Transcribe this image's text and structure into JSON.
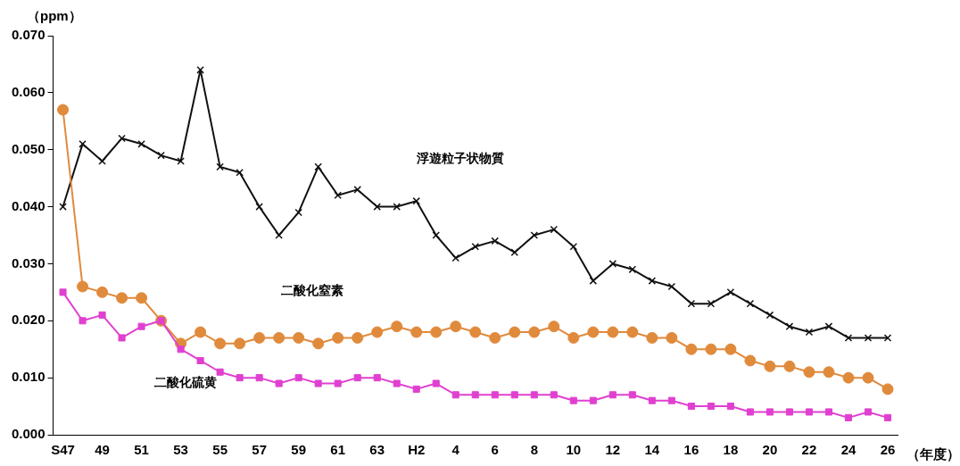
{
  "chart_data": {
    "type": "line",
    "ylabel": "（ppm）",
    "xlabel": "（年度）",
    "categories": [
      "S47",
      null,
      "49",
      null,
      "51",
      null,
      "53",
      null,
      "55",
      null,
      "57",
      null,
      "59",
      null,
      "61",
      null,
      "63",
      null,
      "H2",
      null,
      "4",
      null,
      "6",
      null,
      "8",
      null,
      "10",
      null,
      "12",
      null,
      "14",
      null,
      "16",
      null,
      "18",
      null,
      "20",
      null,
      "22",
      null,
      "24",
      null,
      "26"
    ],
    "series": [
      {
        "name": "浮遊粒子状物質",
        "color": "#111111",
        "marker": "cross",
        "values": [
          0.04,
          0.051,
          0.048,
          0.052,
          0.051,
          0.049,
          0.048,
          0.064,
          0.047,
          0.046,
          0.04,
          0.035,
          0.039,
          0.047,
          0.042,
          0.043,
          0.04,
          0.04,
          0.041,
          0.035,
          0.031,
          0.033,
          0.034,
          0.032,
          0.035,
          0.036,
          0.033,
          0.027,
          0.03,
          0.029,
          0.027,
          0.026,
          0.023,
          0.023,
          0.025,
          0.023,
          0.021,
          0.019,
          0.018,
          0.019,
          0.017,
          0.017,
          0.017
        ]
      },
      {
        "name": "二酸化窒素",
        "color": "#e08a3c",
        "marker": "circle",
        "values": [
          0.057,
          0.026,
          0.025,
          0.024,
          0.024,
          0.02,
          0.016,
          0.018,
          0.016,
          0.016,
          0.017,
          0.017,
          0.017,
          0.016,
          0.017,
          0.017,
          0.018,
          0.019,
          0.018,
          0.018,
          0.019,
          0.018,
          0.017,
          0.018,
          0.018,
          0.019,
          0.017,
          0.018,
          0.018,
          0.018,
          0.017,
          0.017,
          0.015,
          0.015,
          0.015,
          0.013,
          0.012,
          0.012,
          0.011,
          0.011,
          0.01,
          0.01,
          0.008
        ]
      },
      {
        "name": "二酸化硫黄",
        "color": "#e040d0",
        "marker": "square",
        "values": [
          0.025,
          0.02,
          0.021,
          0.017,
          0.019,
          0.02,
          0.015,
          0.013,
          0.011,
          0.01,
          0.01,
          0.009,
          0.01,
          0.009,
          0.009,
          0.01,
          0.01,
          0.009,
          0.008,
          0.009,
          0.007,
          0.007,
          0.007,
          0.007,
          0.007,
          0.007,
          0.006,
          0.006,
          0.007,
          0.007,
          0.006,
          0.006,
          0.005,
          0.005,
          0.005,
          0.004,
          0.004,
          0.004,
          0.004,
          0.004,
          0.003,
          0.004,
          0.003
        ]
      }
    ],
    "ylim": [
      0,
      0.07
    ],
    "yticks": [
      {
        "value": 0,
        "label": "0.000"
      },
      {
        "value": 0.01,
        "label": "0.010"
      },
      {
        "value": 0.02,
        "label": "0.020"
      },
      {
        "value": 0.03,
        "label": "0.030"
      },
      {
        "value": 0.04,
        "label": "0.040"
      },
      {
        "value": 0.05,
        "label": "0.050"
      },
      {
        "value": 0.06,
        "label": "0.060"
      },
      {
        "value": 0.07,
        "label": "0.070"
      }
    ],
    "grid": false,
    "legend": false,
    "line_style": "solid"
  }
}
